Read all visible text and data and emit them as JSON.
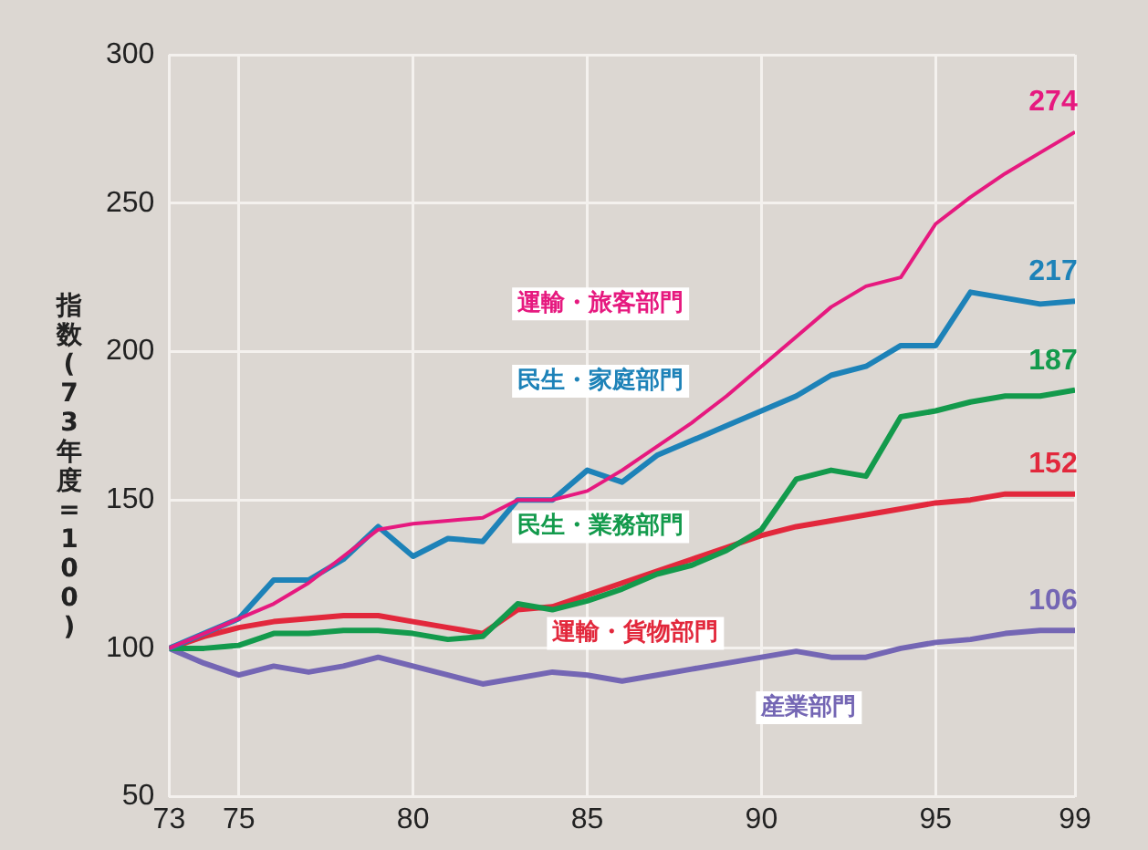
{
  "chart_data": {
    "type": "line",
    "ylabel": "指数(73年度=100)",
    "x": [
      73,
      74,
      75,
      76,
      77,
      78,
      79,
      80,
      81,
      82,
      83,
      84,
      85,
      86,
      87,
      88,
      89,
      90,
      91,
      92,
      93,
      94,
      95,
      96,
      97,
      98,
      99
    ],
    "xlim": [
      73,
      99
    ],
    "xticks": [
      73,
      75,
      80,
      85,
      90,
      95,
      99
    ],
    "ylim": [
      50,
      300
    ],
    "yticks": [
      50,
      100,
      150,
      200,
      250,
      300
    ],
    "grid": true,
    "legend": false,
    "marker": "none",
    "line_style": "solid",
    "series": [
      {
        "name": "運輸・旅客部門",
        "color": "#e6197f",
        "values": [
          100,
          105,
          110,
          115,
          122,
          131,
          140,
          142,
          143,
          144,
          150,
          150,
          153,
          160,
          168,
          176,
          185,
          195,
          205,
          215,
          222,
          225,
          243,
          252,
          260,
          267,
          274
        ],
        "value_labels": [
          null,
          null,
          null,
          null,
          null,
          null,
          null,
          null,
          null,
          null,
          null,
          null,
          null,
          null,
          null,
          null,
          null,
          null,
          null,
          null,
          null,
          null,
          null,
          null,
          null,
          null,
          "274"
        ]
      },
      {
        "name": "民生・家庭部門",
        "color": "#1d82b8",
        "values": [
          100,
          105,
          110,
          123,
          123,
          130,
          141,
          131,
          137,
          136,
          150,
          150,
          160,
          156,
          165,
          170,
          175,
          180,
          185,
          192,
          195,
          202,
          202,
          220,
          218,
          216,
          217
        ],
        "value_labels": [
          null,
          null,
          null,
          null,
          null,
          null,
          null,
          null,
          null,
          null,
          null,
          null,
          null,
          null,
          null,
          null,
          null,
          null,
          null,
          null,
          null,
          null,
          null,
          null,
          null,
          null,
          "217"
        ]
      },
      {
        "name": "民生・業務部門",
        "color": "#139a4c",
        "values": [
          100,
          100,
          101,
          105,
          105,
          106,
          106,
          105,
          103,
          104,
          115,
          113,
          116,
          120,
          125,
          128,
          133,
          140,
          157,
          160,
          158,
          178,
          180,
          183,
          185,
          185,
          187
        ],
        "value_labels": [
          null,
          null,
          null,
          null,
          null,
          null,
          null,
          null,
          null,
          null,
          null,
          null,
          null,
          null,
          null,
          null,
          null,
          null,
          null,
          null,
          null,
          null,
          null,
          null,
          null,
          null,
          "187"
        ]
      },
      {
        "name": "運輸・貨物部門",
        "color": "#e2283c",
        "values": [
          100,
          104,
          107,
          109,
          110,
          111,
          111,
          109,
          107,
          105,
          113,
          114,
          118,
          122,
          126,
          130,
          134,
          138,
          141,
          143,
          145,
          147,
          149,
          150,
          152,
          152,
          152
        ],
        "value_labels": [
          null,
          null,
          null,
          null,
          null,
          null,
          null,
          null,
          null,
          null,
          null,
          null,
          null,
          null,
          null,
          null,
          null,
          null,
          null,
          null,
          null,
          null,
          null,
          null,
          null,
          null,
          "152"
        ]
      },
      {
        "name": "産業部門",
        "color": "#7466b4",
        "values": [
          100,
          95,
          91,
          94,
          92,
          94,
          97,
          94,
          91,
          88,
          90,
          92,
          91,
          89,
          91,
          93,
          95,
          97,
          99,
          97,
          97,
          100,
          102,
          103,
          105,
          106,
          106
        ],
        "value_labels": [
          null,
          null,
          null,
          null,
          null,
          null,
          null,
          null,
          null,
          null,
          null,
          null,
          null,
          null,
          null,
          null,
          null,
          null,
          null,
          null,
          null,
          null,
          null,
          null,
          null,
          null,
          "106"
        ]
      }
    ]
  }
}
